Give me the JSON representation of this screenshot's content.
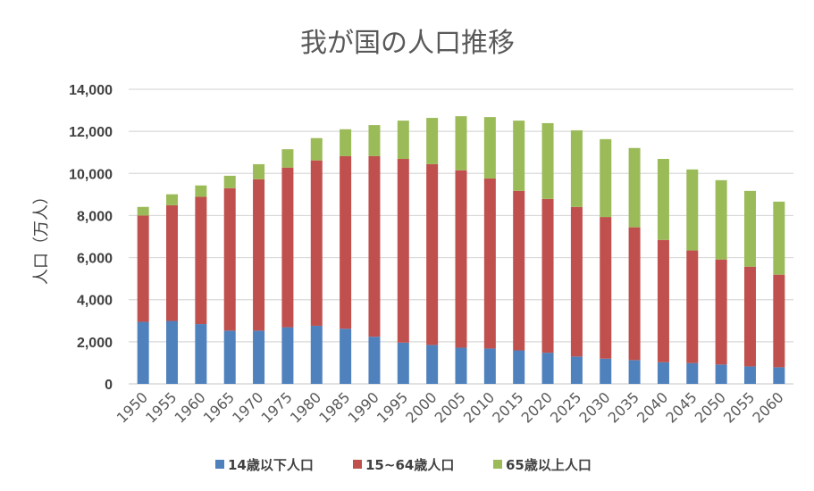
{
  "chart_data": {
    "type": "bar",
    "stacked": true,
    "title": "我が国の人口推移",
    "xlabel": "",
    "ylabel": "人口（万人）",
    "ylim": [
      0,
      14000
    ],
    "yticks": [
      0,
      2000,
      4000,
      6000,
      8000,
      10000,
      12000,
      14000
    ],
    "ytick_labels": [
      "0",
      "2,000",
      "4,000",
      "6,000",
      "8,000",
      "10,000",
      "12,000",
      "14,000"
    ],
    "grid": true,
    "legend_position": "bottom",
    "categories": [
      "1950",
      "1955",
      "1960",
      "1965",
      "1970",
      "1975",
      "1980",
      "1985",
      "1990",
      "1995",
      "2000",
      "2005",
      "2010",
      "2015",
      "2020",
      "2025",
      "2030",
      "2035",
      "2040",
      "2045",
      "2050",
      "2055",
      "2060"
    ],
    "series": [
      {
        "name": "14歳以下人口",
        "color": "#4f81bd",
        "values": [
          2950,
          2990,
          2840,
          2530,
          2530,
          2690,
          2760,
          2620,
          2240,
          1960,
          1850,
          1720,
          1680,
          1590,
          1480,
          1300,
          1200,
          1130,
          1030,
          990,
          920,
          830,
          790
        ]
      },
      {
        "name": "15~64歳人口",
        "color": "#c0504d",
        "values": [
          5050,
          5500,
          6050,
          6770,
          7190,
          7590,
          7860,
          8200,
          8580,
          8730,
          8590,
          8430,
          8080,
          7580,
          7310,
          7110,
          6730,
          6310,
          5810,
          5350,
          4990,
          4740,
          4400
        ]
      },
      {
        "name": "65歳以上人口",
        "color": "#9bbb59",
        "values": [
          410,
          520,
          540,
          590,
          720,
          870,
          1060,
          1280,
          1480,
          1820,
          2200,
          2570,
          2920,
          3340,
          3600,
          3640,
          3700,
          3770,
          3850,
          3850,
          3770,
          3600,
          3470
        ]
      }
    ]
  }
}
